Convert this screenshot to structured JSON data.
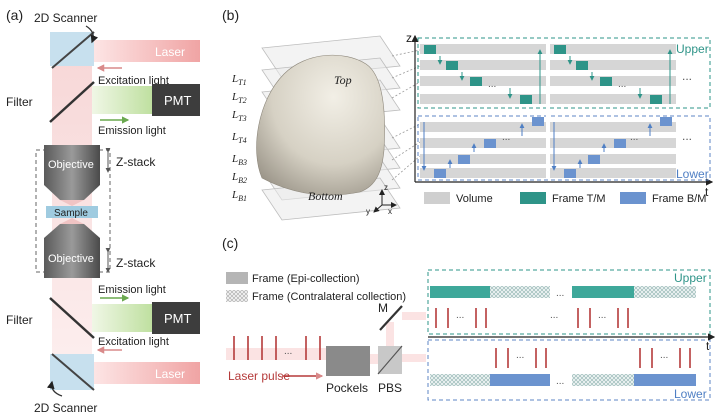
{
  "panel_a": {
    "label": "(a)",
    "scanner_top": "2D Scanner",
    "scanner_bottom": "2D Scanner",
    "laser_top": "Laser",
    "laser_bottom": "Laser",
    "excitation_top": "Excitation light",
    "excitation_bottom": "Excitation light",
    "emission_top": "Emission light",
    "emission_bottom": "Emission light",
    "filter_top": "Filter",
    "filter_bottom": "Filter",
    "pmt_top": "PMT",
    "pmt_bottom": "PMT",
    "objective_top": "Objective",
    "objective_bottom": "Objective",
    "sample": "Sample",
    "zstack_top": "Z-stack",
    "zstack_bottom": "Z-stack"
  },
  "panel_b": {
    "label": "(b)",
    "layers_upper": [
      "L",
      "L",
      "L",
      "L"
    ],
    "layers_upper_sub": [
      "T1",
      "T2",
      "T3",
      "T4"
    ],
    "layers_lower": [
      "L",
      "L",
      "L"
    ],
    "layers_lower_sub": [
      "B3",
      "B2",
      "B1"
    ],
    "top_label": "Top",
    "bottom_label": "Bottom",
    "axis_z": "z",
    "axis_t": "t",
    "axis_y": "y",
    "axis_x": "x",
    "upper": "Upper",
    "lower": "Lower",
    "dots": "...",
    "legend": {
      "volume": "Volume",
      "frame_tm": "Frame T/M",
      "frame_bm": "Frame B/M"
    },
    "colors": {
      "teal": "#2e9488",
      "blue": "#6b93cf",
      "gray": "#cfcfcf"
    }
  },
  "panel_c": {
    "label": "(c)",
    "legend_epi": "Frame (Epi-collection)",
    "legend_contra": "Frame (Contralateral collection)",
    "m_label": "M",
    "laser_pulse": "Laser pulse",
    "pockels": "Pockels",
    "pbs": "PBS",
    "upper": "Upper",
    "lower": "Lower",
    "axis_t": "t",
    "dots": "..."
  }
}
